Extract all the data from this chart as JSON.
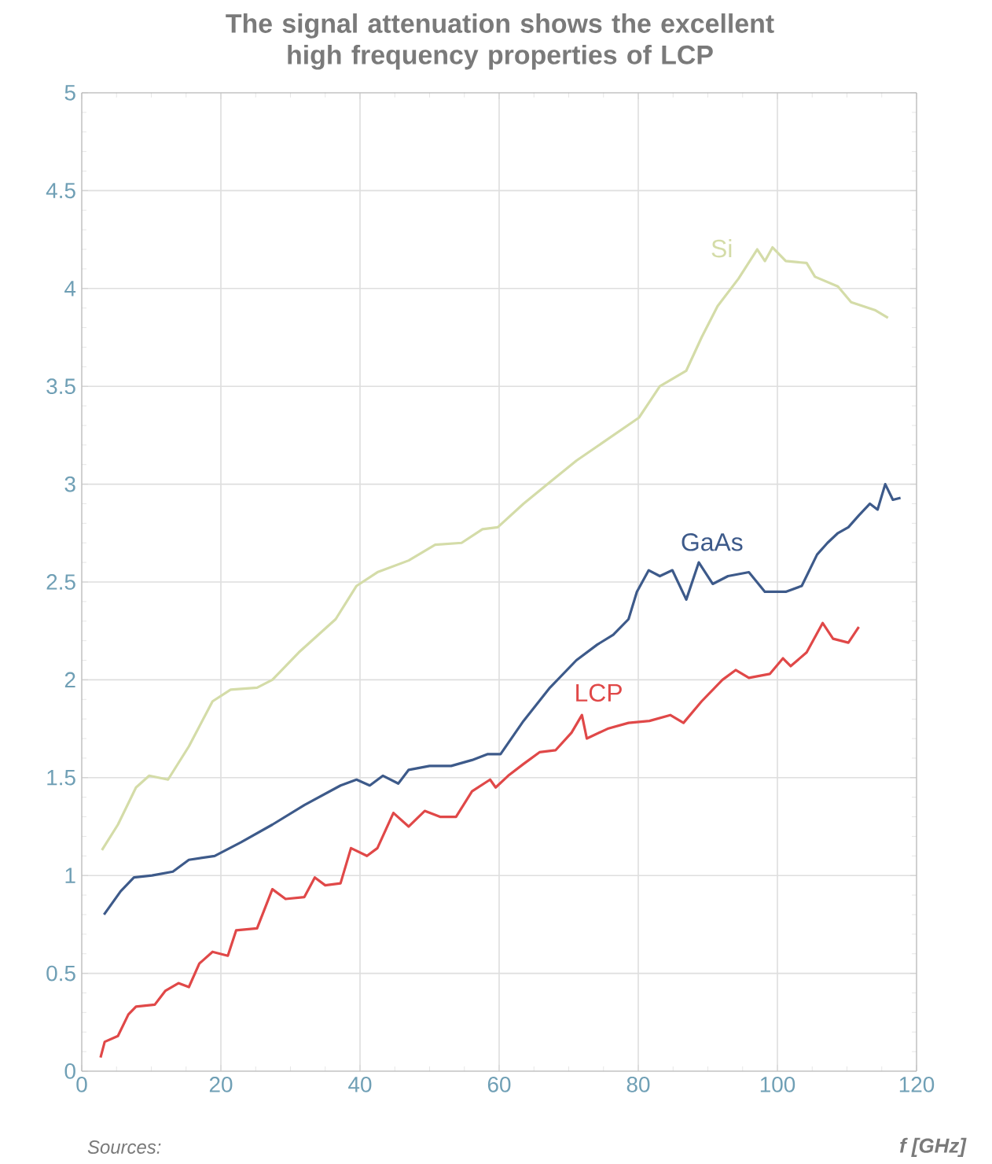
{
  "chart_data": {
    "type": "line",
    "title": "The signal attenuation shows the excellent high frequency properties of LCP",
    "xlabel": "f [GHz]",
    "annotations": [
      "Sources:"
    ],
    "xlim": [
      0,
      120
    ],
    "ylim": [
      0,
      5
    ],
    "xticks": [
      0,
      20,
      40,
      60,
      80,
      100,
      120
    ],
    "yticks": [
      0,
      0.5,
      1,
      1.5,
      2,
      2.5,
      3,
      3.5,
      4,
      4.5,
      5
    ],
    "grid": true,
    "series": [
      {
        "name": "Si",
        "color": "#d4dca8",
        "x": [
          2.9,
          5.2,
          7.8,
          9.7,
          12.4,
          15.4,
          18.8,
          21.4,
          25.2,
          27.4,
          31.2,
          36.5,
          39.5,
          42.5,
          47.0,
          50.8,
          54.6,
          57.6,
          59.8,
          63.5,
          67.3,
          71.1,
          75.6,
          80.1,
          83.1,
          86.9,
          89.1,
          91.4,
          94.4,
          97.1,
          98.2,
          99.3,
          101.2,
          104.2,
          105.4,
          108.7,
          110.6,
          114.0,
          115.9
        ],
        "values": [
          1.13,
          1.26,
          1.45,
          1.51,
          1.49,
          1.66,
          1.89,
          1.95,
          1.96,
          2.0,
          2.14,
          2.31,
          2.48,
          2.55,
          2.61,
          2.69,
          2.7,
          2.77,
          2.78,
          2.9,
          3.01,
          3.12,
          3.23,
          3.34,
          3.5,
          3.58,
          3.75,
          3.91,
          4.05,
          4.2,
          4.14,
          4.21,
          4.14,
          4.13,
          4.06,
          4.01,
          3.93,
          3.89,
          3.85
        ]
      },
      {
        "name": "GaAs",
        "color": "#3d5a8a",
        "x": [
          3.2,
          5.6,
          7.5,
          10.1,
          13.1,
          15.4,
          19.1,
          22.9,
          27.4,
          32.0,
          37.2,
          39.5,
          41.4,
          43.3,
          45.5,
          47.0,
          50.0,
          53.1,
          56.1,
          58.3,
          60.2,
          63.5,
          67.3,
          71.1,
          74.1,
          76.4,
          78.6,
          79.8,
          81.5,
          83.1,
          84.9,
          86.9,
          88.7,
          90.7,
          92.9,
          95.9,
          98.2,
          101.2,
          103.5,
          105.7,
          107.2,
          108.7,
          110.2,
          111.7,
          113.3,
          114.4,
          115.5,
          116.6,
          117.7
        ],
        "values": [
          0.8,
          0.92,
          0.99,
          1.0,
          1.02,
          1.08,
          1.1,
          1.17,
          1.26,
          1.36,
          1.46,
          1.49,
          1.46,
          1.51,
          1.47,
          1.54,
          1.56,
          1.56,
          1.59,
          1.62,
          1.62,
          1.79,
          1.96,
          2.1,
          2.18,
          2.23,
          2.31,
          2.45,
          2.56,
          2.53,
          2.56,
          2.41,
          2.6,
          2.49,
          2.53,
          2.55,
          2.45,
          2.45,
          2.48,
          2.64,
          2.7,
          2.75,
          2.78,
          2.84,
          2.9,
          2.87,
          3.0,
          2.92,
          2.93
        ]
      },
      {
        "name": "LCP",
        "color": "#e04848",
        "x": [
          2.7,
          3.3,
          5.2,
          6.7,
          7.8,
          10.5,
          12.0,
          13.9,
          15.4,
          16.9,
          18.8,
          21.0,
          22.2,
          25.2,
          27.4,
          29.3,
          32.0,
          33.5,
          35.0,
          37.2,
          38.7,
          41.0,
          42.5,
          44.8,
          47.0,
          49.3,
          51.5,
          53.8,
          56.1,
          58.7,
          59.5,
          61.3,
          63.5,
          65.8,
          68.1,
          70.4,
          71.9,
          72.6,
          75.6,
          78.6,
          81.6,
          84.6,
          86.5,
          89.1,
          92.1,
          94.0,
          95.9,
          98.9,
          100.8,
          101.9,
          104.2,
          106.5,
          108.0,
          110.2,
          111.7
        ],
        "values": [
          0.07,
          0.15,
          0.18,
          0.29,
          0.33,
          0.34,
          0.41,
          0.45,
          0.43,
          0.55,
          0.61,
          0.59,
          0.72,
          0.73,
          0.93,
          0.88,
          0.89,
          0.99,
          0.95,
          0.96,
          1.14,
          1.1,
          1.14,
          1.32,
          1.25,
          1.33,
          1.3,
          1.3,
          1.43,
          1.49,
          1.45,
          1.51,
          1.57,
          1.63,
          1.64,
          1.73,
          1.82,
          1.7,
          1.75,
          1.78,
          1.79,
          1.82,
          1.78,
          1.89,
          2.0,
          2.05,
          2.01,
          2.03,
          2.11,
          2.07,
          2.14,
          2.29,
          2.21,
          2.19,
          2.27
        ]
      }
    ]
  }
}
